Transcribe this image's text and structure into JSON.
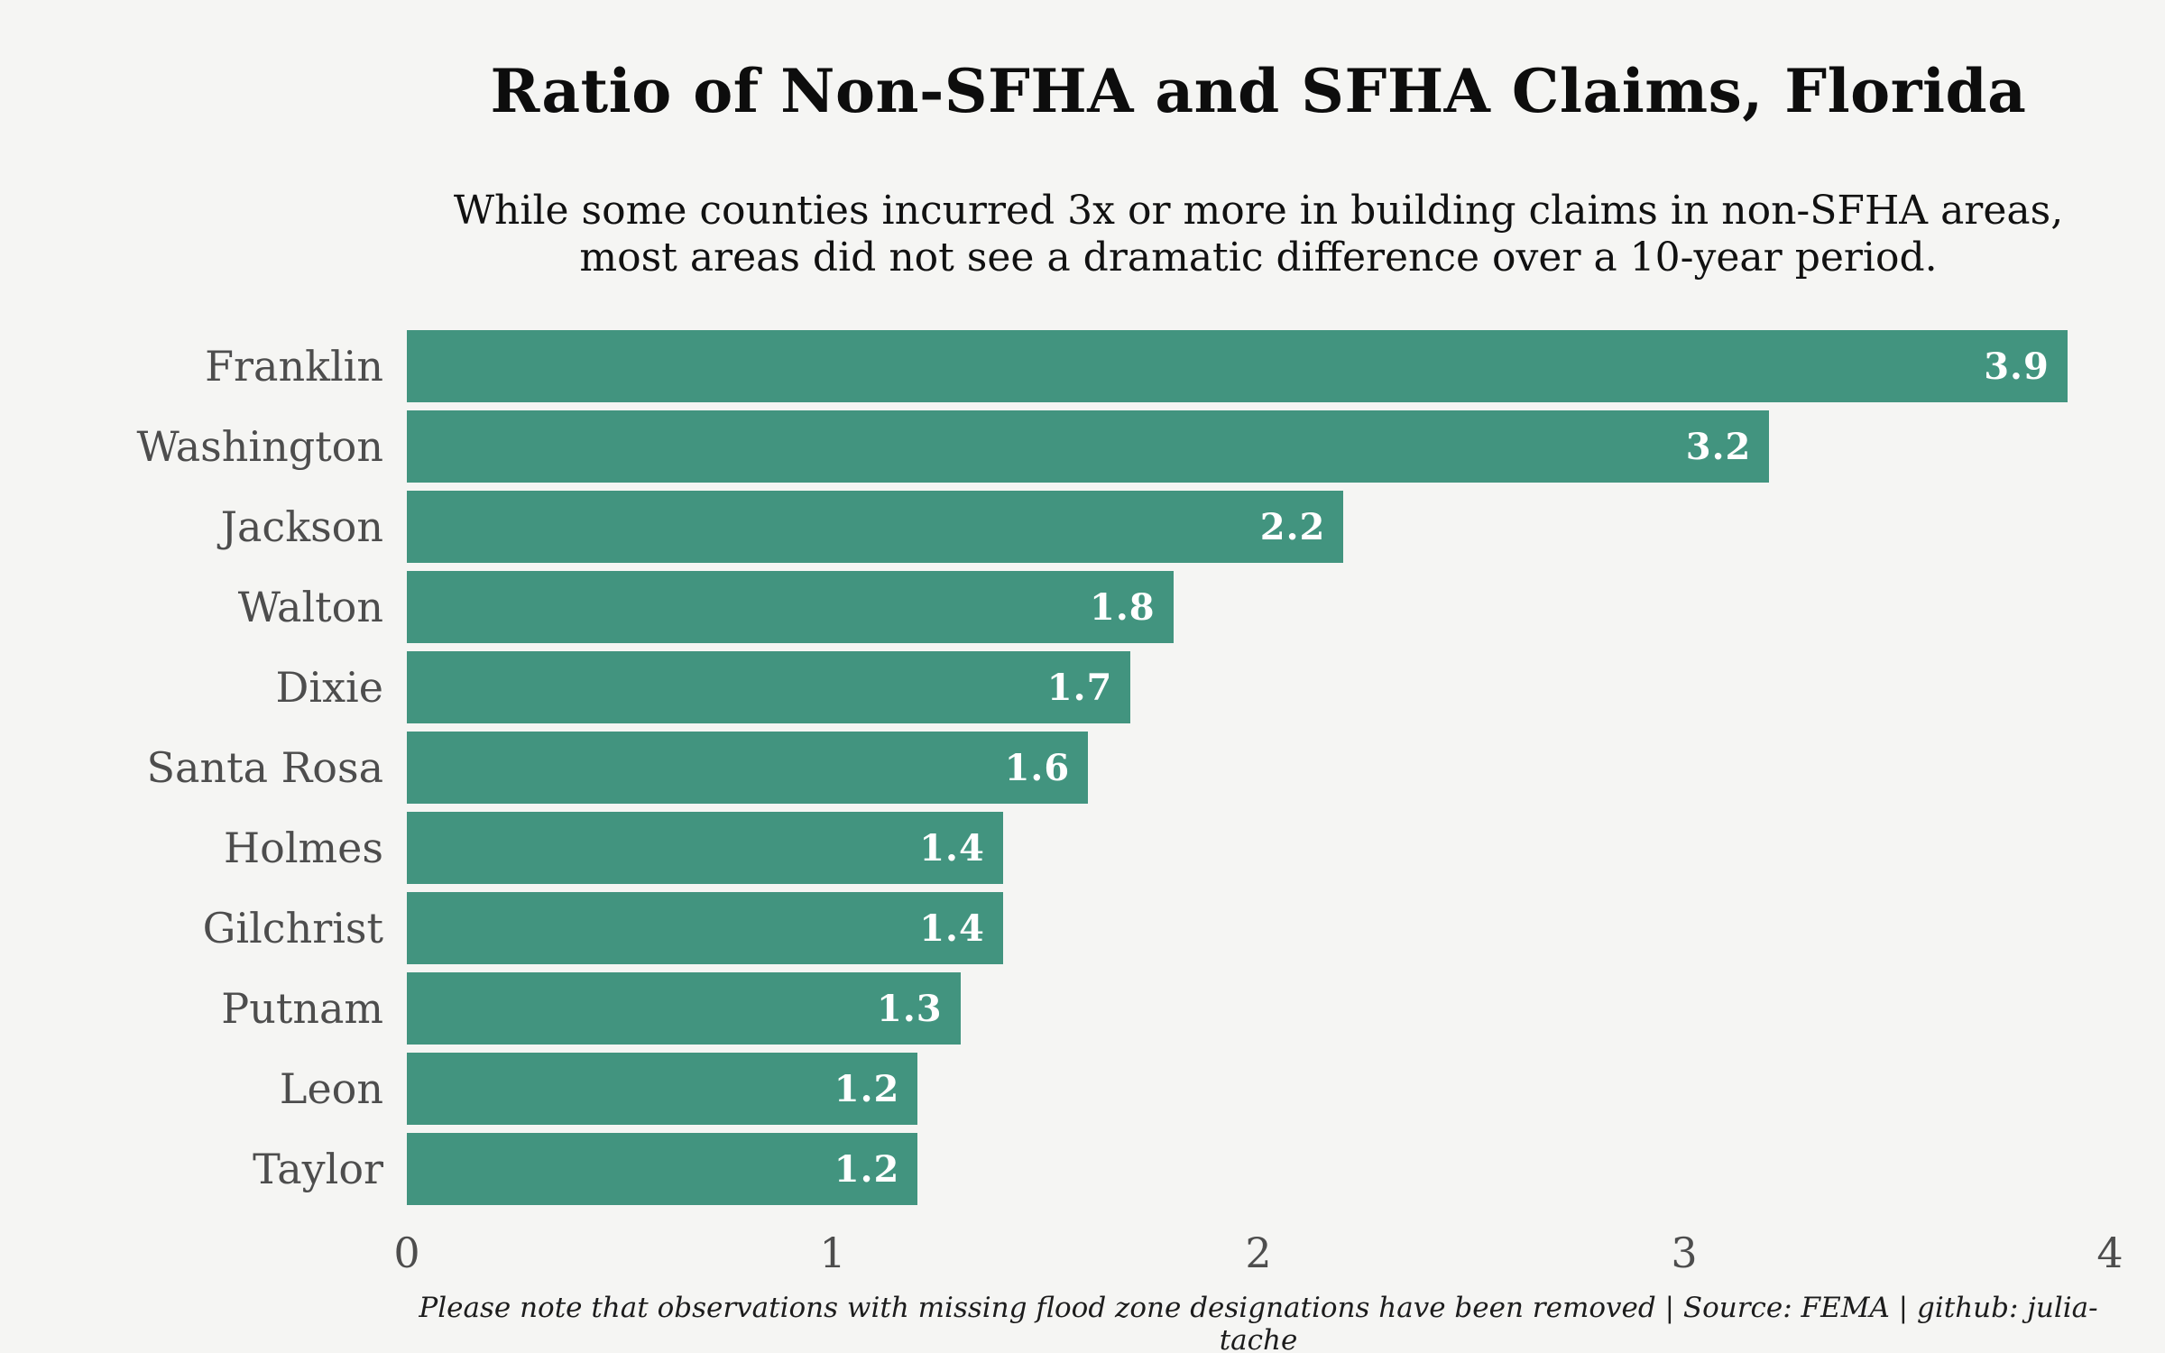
{
  "page": {
    "background_color": "#f5f5f3"
  },
  "chart_data": {
    "type": "bar",
    "orientation": "horizontal",
    "title": "Ratio of Non-SFHA and SFHA Claims, Florida",
    "subtitle_lines": [
      "While some counties incurred 3x or more in building claims in non-SFHA areas,",
      "most areas did not see a dramatic difference over a 10-year period."
    ],
    "categories": [
      "Franklin",
      "Washington",
      "Jackson",
      "Walton",
      "Dixie",
      "Santa Rosa",
      "Holmes",
      "Gilchrist",
      "Putnam",
      "Leon",
      "Taylor"
    ],
    "values": [
      3.9,
      3.2,
      2.2,
      1.8,
      1.7,
      1.6,
      1.4,
      1.4,
      1.3,
      1.2,
      1.2
    ],
    "value_labels": [
      "3.9",
      "3.2",
      "2.2",
      "1.8",
      "1.7",
      "1.6",
      "1.4",
      "1.4",
      "1.3",
      "1.2",
      "1.2"
    ],
    "xlabel": "",
    "ylabel": "",
    "xlim": [
      0,
      4
    ],
    "x_ticks": [
      "0",
      "1",
      "2",
      "3",
      "4"
    ],
    "grid": false,
    "legend": false,
    "bar_color": "#42947f",
    "category_label_color": "#4d4d4d",
    "value_label_color": "#ffffff",
    "caption": "Please note that observations with missing flood zone designations have been removed | Source: FEMA | github: julia-tache"
  }
}
